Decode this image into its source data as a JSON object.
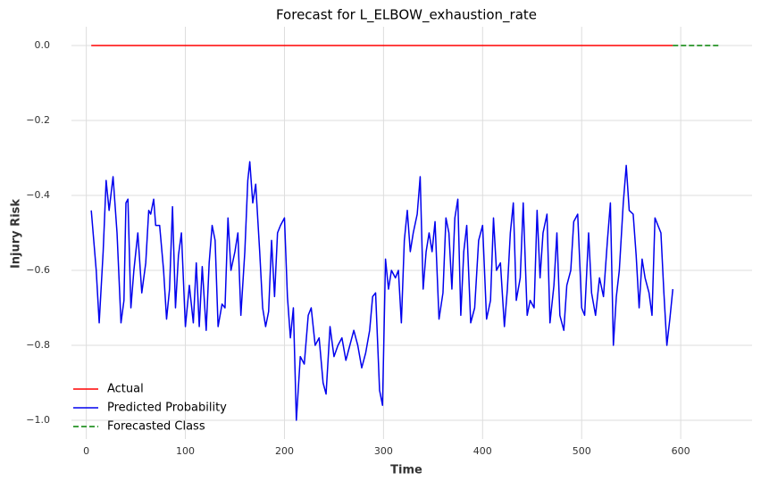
{
  "chart_data": {
    "type": "line",
    "title": "Forecast for L_ELBOW_exhaustion_rate",
    "xlabel": "Time",
    "ylabel": "Injury Risk",
    "xlim": [
      -15,
      672
    ],
    "ylim": [
      -1.05,
      0.05
    ],
    "xticks": [
      0,
      100,
      200,
      300,
      400,
      500,
      600
    ],
    "yticks": [
      {
        "value": 0,
        "label": "0.0"
      },
      {
        "value": -0.2,
        "label": "−0.2"
      },
      {
        "value": -0.4,
        "label": "−0.4"
      },
      {
        "value": -0.6,
        "label": "−0.6"
      },
      {
        "value": -0.8,
        "label": "−0.8"
      },
      {
        "value": -1.0,
        "label": "−1.0"
      }
    ],
    "grid": true,
    "legend": "lower left",
    "series": [
      {
        "name": "Actual",
        "color": "#ff0000",
        "linestyle": "solid",
        "x": [
          5,
          592
        ],
        "values": [
          0,
          0
        ]
      },
      {
        "name": "Predicted Probability",
        "color": "#0000ee",
        "linestyle": "solid",
        "x": [
          5,
          10,
          13,
          17,
          20,
          23,
          27,
          31,
          35,
          38,
          40,
          42,
          45,
          48,
          52,
          56,
          60,
          63,
          65,
          68,
          70,
          74,
          78,
          81,
          84,
          87,
          90,
          93,
          96,
          100,
          104,
          108,
          111,
          114,
          117,
          121,
          124,
          127,
          130,
          133,
          137,
          140,
          143,
          146,
          150,
          153,
          156,
          160,
          163,
          165,
          168,
          171,
          175,
          178,
          181,
          184,
          187,
          190,
          193,
          196,
          200,
          203,
          206,
          209,
          212,
          216,
          220,
          224,
          227,
          231,
          235,
          239,
          242,
          246,
          250,
          254,
          258,
          262,
          266,
          270,
          274,
          278,
          282,
          286,
          289,
          292,
          296,
          299,
          302,
          305,
          308,
          312,
          315,
          318,
          321,
          324,
          327,
          330,
          334,
          337,
          340,
          343,
          346,
          349,
          352,
          356,
          360,
          363,
          366,
          369,
          372,
          375,
          378,
          381,
          384,
          388,
          392,
          396,
          400,
          404,
          408,
          411,
          414,
          418,
          422,
          425,
          428,
          431,
          434,
          438,
          441,
          445,
          448,
          452,
          455,
          458,
          461,
          465,
          468,
          472,
          475,
          478,
          482,
          485,
          489,
          492,
          496,
          500,
          503,
          507,
          510,
          514,
          518,
          522,
          526,
          529,
          532,
          535,
          538,
          542,
          545,
          548,
          552,
          555,
          558,
          561,
          564,
          568,
          571,
          574,
          577,
          580,
          583,
          586,
          589,
          592
        ],
        "values": [
          -0.44,
          -0.6,
          -0.74,
          -0.55,
          -0.36,
          -0.44,
          -0.35,
          -0.5,
          -0.74,
          -0.68,
          -0.42,
          -0.41,
          -0.7,
          -0.6,
          -0.5,
          -0.66,
          -0.58,
          -0.44,
          -0.45,
          -0.41,
          -0.48,
          -0.48,
          -0.6,
          -0.73,
          -0.65,
          -0.43,
          -0.7,
          -0.56,
          -0.5,
          -0.75,
          -0.64,
          -0.74,
          -0.58,
          -0.75,
          -0.59,
          -0.76,
          -0.58,
          -0.48,
          -0.52,
          -0.75,
          -0.69,
          -0.7,
          -0.46,
          -0.6,
          -0.55,
          -0.5,
          -0.72,
          -0.55,
          -0.36,
          -0.31,
          -0.42,
          -0.37,
          -0.55,
          -0.7,
          -0.75,
          -0.71,
          -0.52,
          -0.67,
          -0.5,
          -0.48,
          -0.46,
          -0.67,
          -0.78,
          -0.7,
          -1.0,
          -0.83,
          -0.85,
          -0.72,
          -0.7,
          -0.8,
          -0.78,
          -0.9,
          -0.93,
          -0.75,
          -0.83,
          -0.8,
          -0.78,
          -0.84,
          -0.8,
          -0.76,
          -0.8,
          -0.86,
          -0.82,
          -0.76,
          -0.67,
          -0.66,
          -0.92,
          -0.96,
          -0.57,
          -0.65,
          -0.6,
          -0.62,
          -0.6,
          -0.74,
          -0.52,
          -0.44,
          -0.55,
          -0.5,
          -0.45,
          -0.35,
          -0.65,
          -0.55,
          -0.5,
          -0.55,
          -0.47,
          -0.73,
          -0.66,
          -0.46,
          -0.5,
          -0.65,
          -0.46,
          -0.41,
          -0.72,
          -0.55,
          -0.48,
          -0.74,
          -0.7,
          -0.52,
          -0.48,
          -0.73,
          -0.68,
          -0.46,
          -0.6,
          -0.58,
          -0.75,
          -0.65,
          -0.5,
          -0.42,
          -0.68,
          -0.62,
          -0.42,
          -0.72,
          -0.68,
          -0.7,
          -0.44,
          -0.62,
          -0.5,
          -0.45,
          -0.74,
          -0.64,
          -0.5,
          -0.72,
          -0.76,
          -0.64,
          -0.6,
          -0.47,
          -0.45,
          -0.7,
          -0.72,
          -0.5,
          -0.66,
          -0.72,
          -0.62,
          -0.67,
          -0.52,
          -0.42,
          -0.8,
          -0.67,
          -0.6,
          -0.42,
          -0.32,
          -0.44,
          -0.45,
          -0.56,
          -0.7,
          -0.57,
          -0.62,
          -0.66,
          -0.72,
          -0.46,
          -0.48,
          -0.5,
          -0.66,
          -0.8,
          -0.73,
          -0.65
        ]
      },
      {
        "name": "Forecasted Class",
        "color": "#008000",
        "linestyle": "dashed",
        "x": [
          592,
          640
        ],
        "values": [
          0,
          0
        ]
      }
    ]
  }
}
